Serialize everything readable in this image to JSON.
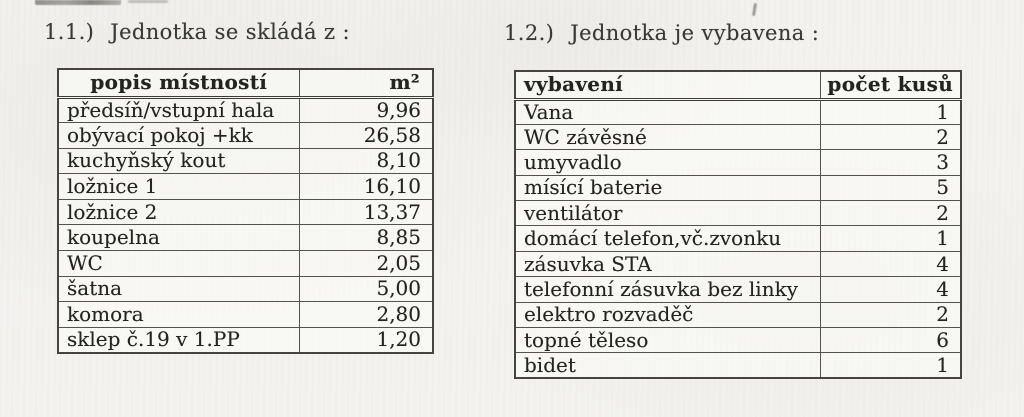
{
  "sections": [
    {
      "number": "1.1.)",
      "title": "Jednotka se skládá z :",
      "table": {
        "headers": [
          "popis místností",
          "m²"
        ],
        "rows": [
          [
            "předsíň/vstupní hala",
            "9,96"
          ],
          [
            "obývací pokoj +kk",
            "26,58"
          ],
          [
            "kuchyňský kout",
            "8,10"
          ],
          [
            "ložnice 1",
            "16,10"
          ],
          [
            "ložnice 2",
            "13,37"
          ],
          [
            "koupelna",
            "8,85"
          ],
          [
            "WC",
            "2,05"
          ],
          [
            "šatna",
            "5,00"
          ],
          [
            "komora",
            "2,80"
          ],
          [
            "sklep č.19 v 1.PP",
            "1,20"
          ]
        ]
      }
    },
    {
      "number": "1.2.)",
      "title": "Jednotka je vybavena :",
      "table": {
        "headers": [
          "vybavení",
          "počet kusů"
        ],
        "rows": [
          [
            "Vana",
            "1"
          ],
          [
            "WC závěsné",
            "2"
          ],
          [
            "umyvadlo",
            "3"
          ],
          [
            "mísící baterie",
            "5"
          ],
          [
            "ventilátor",
            "2"
          ],
          [
            "domácí telefon,vč.zvonku",
            "1"
          ],
          [
            "zásuvka STA",
            "4"
          ],
          [
            "telefonní zásuvka bez linky",
            "4"
          ],
          [
            "elektro rozvaděč",
            "2"
          ],
          [
            "topné těleso",
            "6"
          ],
          [
            "bidet",
            "1"
          ]
        ]
      }
    }
  ],
  "colors": {
    "paper": "#f3f2ef",
    "ink": "#23231f",
    "border": "#45443f"
  }
}
